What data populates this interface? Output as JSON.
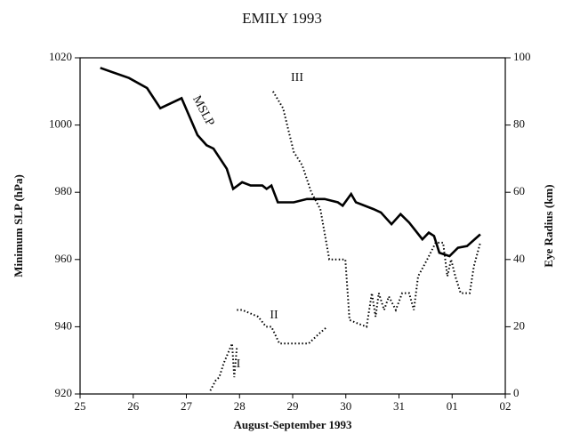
{
  "chart_data": {
    "type": "line",
    "title": "EMILY 1993",
    "x_label": "August-September 1993",
    "y_label": "Minimum SLP (hPa)",
    "y2_label": "Eye Radius (km)",
    "xlim": [
      25,
      33
    ],
    "xticks": [
      25,
      26,
      27,
      28,
      29,
      30,
      31,
      {
        "value": 32,
        "label": "01"
      },
      {
        "value": 33,
        "label": "02"
      }
    ],
    "ylim": [
      920,
      1020
    ],
    "yticks": [
      920,
      940,
      960,
      980,
      1000,
      1020
    ],
    "y2lim": [
      0,
      100
    ],
    "y2ticks": [
      0,
      20,
      40,
      60,
      80,
      100
    ],
    "series": [
      {
        "name": "MSLP",
        "color": "#000000",
        "style": "solid",
        "x": [
          25.38,
          25.92,
          26.26,
          26.51,
          26.91,
          27.21,
          27.38,
          27.51,
          27.76,
          27.88,
          28.05,
          28.21,
          28.43,
          28.51,
          28.6,
          28.72,
          29.02,
          29.27,
          29.6,
          29.85,
          29.94,
          30.1,
          30.19,
          30.52,
          30.66,
          30.86,
          31.03,
          31.19,
          31.44,
          31.56,
          31.66,
          31.76,
          31.95,
          32.11,
          32.28,
          32.53
        ],
        "values": [
          1017,
          1014,
          1011,
          1005,
          1008,
          997,
          994,
          993,
          987,
          981,
          983,
          982,
          982,
          981,
          982,
          977,
          977,
          978,
          978,
          977,
          976,
          979.5,
          977,
          975,
          974,
          970.5,
          973.5,
          971,
          966,
          968,
          967,
          962,
          961,
          963.5,
          964,
          967.5
        ]
      },
      {
        "name": "I",
        "color": "#000000",
        "style": "dotted",
        "axis": "y2",
        "x": [
          27.45,
          27.55,
          27.62,
          27.7,
          27.78,
          27.86,
          27.9,
          27.95
        ],
        "values": [
          1,
          4,
          5,
          9,
          12,
          15,
          5,
          14
        ]
      },
      {
        "name": "II",
        "color": "#000000",
        "style": "dotted",
        "axis": "y2",
        "x": [
          27.95,
          28.05,
          28.2,
          28.35,
          28.5,
          28.6,
          28.75,
          29.0,
          29.3,
          29.5,
          29.65
        ],
        "values": [
          25,
          25,
          24,
          23,
          20,
          20,
          15,
          15,
          15,
          18,
          20
        ]
      },
      {
        "name": "III",
        "color": "#000000",
        "style": "dotted",
        "axis": "y2",
        "x": [
          28.63,
          28.82,
          29.02,
          29.18,
          29.35,
          29.52,
          29.69,
          29.85,
          29.99,
          30.07,
          30.22,
          30.39,
          30.49,
          30.56,
          30.62,
          30.72,
          30.81,
          30.94,
          31.06,
          31.19,
          31.28,
          31.36,
          31.53,
          31.69,
          31.83,
          31.91,
          31.98,
          32.06,
          32.16,
          32.33,
          32.41,
          32.53
        ],
        "values": [
          90,
          85,
          72,
          68,
          60,
          55,
          40,
          40,
          40,
          22,
          21,
          20,
          30,
          23,
          30,
          25,
          29,
          25,
          30,
          30,
          25,
          35,
          40,
          45,
          45,
          35,
          40,
          35,
          30,
          30,
          38,
          45
        ]
      }
    ]
  }
}
